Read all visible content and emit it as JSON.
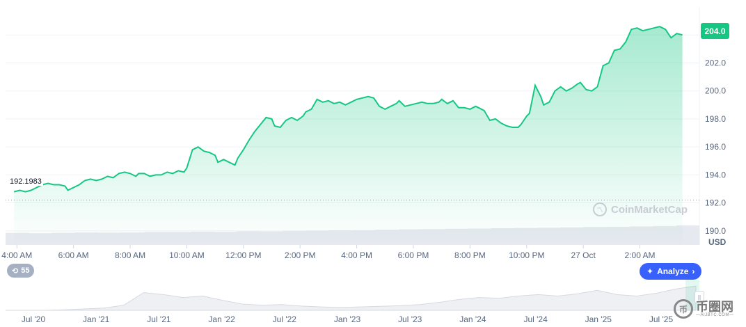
{
  "chart_data": {
    "type": "area",
    "currency": "USD",
    "last_price_label": "204.0",
    "open_price_label": "192.1983",
    "open_price": 192.1983,
    "ylim": [
      189,
      206
    ],
    "y_ticks": [
      "190.0",
      "192.0",
      "194.0",
      "196.0",
      "198.0",
      "200.0",
      "202.0",
      "204.0"
    ],
    "x_ticks": [
      {
        "label": "4:00 AM",
        "t": 3
      },
      {
        "label": "6:00 AM",
        "t": 5
      },
      {
        "label": "8:00 AM",
        "t": 7
      },
      {
        "label": "10:00 AM",
        "t": 9
      },
      {
        "label": "12:00 PM",
        "t": 11
      },
      {
        "label": "2:00 PM",
        "t": 13
      },
      {
        "label": "4:00 PM",
        "t": 15
      },
      {
        "label": "6:00 PM",
        "t": 17
      },
      {
        "label": "8:00 PM",
        "t": 19
      },
      {
        "label": "10:00 PM",
        "t": 21
      },
      {
        "label": "27 Oct",
        "t": 23
      },
      {
        "label": "2:00 AM",
        "t": 25
      }
    ],
    "xlim": [
      2.6,
      27.1
    ],
    "series": [
      {
        "line_color": "#16c784",
        "points": [
          [
            2.9,
            192.8
          ],
          [
            3.1,
            192.9
          ],
          [
            3.3,
            192.8
          ],
          [
            3.5,
            192.9
          ],
          [
            3.7,
            193.1
          ],
          [
            3.9,
            193.3
          ],
          [
            4.1,
            193.4
          ],
          [
            4.3,
            193.3
          ],
          [
            4.5,
            193.3
          ],
          [
            4.7,
            193.2
          ],
          [
            4.8,
            192.9
          ],
          [
            5.0,
            193.1
          ],
          [
            5.2,
            193.3
          ],
          [
            5.4,
            193.6
          ],
          [
            5.6,
            193.7
          ],
          [
            5.8,
            193.6
          ],
          [
            6.0,
            193.7
          ],
          [
            6.2,
            193.9
          ],
          [
            6.4,
            193.8
          ],
          [
            6.6,
            194.1
          ],
          [
            6.8,
            194.2
          ],
          [
            7.0,
            194.1
          ],
          [
            7.2,
            193.9
          ],
          [
            7.3,
            194.1
          ],
          [
            7.5,
            194.1
          ],
          [
            7.7,
            193.9
          ],
          [
            7.9,
            194.0
          ],
          [
            8.1,
            194.0
          ],
          [
            8.3,
            194.2
          ],
          [
            8.5,
            194.1
          ],
          [
            8.7,
            194.3
          ],
          [
            8.9,
            194.2
          ],
          [
            9.0,
            194.5
          ],
          [
            9.2,
            195.8
          ],
          [
            9.4,
            196.0
          ],
          [
            9.6,
            195.7
          ],
          [
            9.8,
            195.6
          ],
          [
            10.0,
            195.4
          ],
          [
            10.1,
            194.9
          ],
          [
            10.3,
            195.1
          ],
          [
            10.5,
            194.9
          ],
          [
            10.7,
            194.7
          ],
          [
            10.8,
            195.2
          ],
          [
            11.0,
            195.8
          ],
          [
            11.2,
            196.5
          ],
          [
            11.4,
            197.1
          ],
          [
            11.6,
            197.6
          ],
          [
            11.8,
            198.1
          ],
          [
            12.0,
            198.0
          ],
          [
            12.1,
            197.5
          ],
          [
            12.3,
            197.4
          ],
          [
            12.5,
            197.9
          ],
          [
            12.7,
            198.1
          ],
          [
            12.9,
            197.9
          ],
          [
            13.1,
            198.2
          ],
          [
            13.2,
            198.5
          ],
          [
            13.4,
            198.7
          ],
          [
            13.6,
            199.4
          ],
          [
            13.8,
            199.2
          ],
          [
            14.0,
            199.3
          ],
          [
            14.2,
            199.1
          ],
          [
            14.4,
            199.2
          ],
          [
            14.6,
            199.0
          ],
          [
            14.8,
            199.2
          ],
          [
            15.0,
            199.4
          ],
          [
            15.2,
            199.5
          ],
          [
            15.4,
            199.6
          ],
          [
            15.6,
            199.5
          ],
          [
            15.8,
            198.9
          ],
          [
            16.0,
            198.7
          ],
          [
            16.2,
            198.9
          ],
          [
            16.4,
            199.1
          ],
          [
            16.5,
            199.3
          ],
          [
            16.7,
            198.9
          ],
          [
            16.9,
            199.0
          ],
          [
            17.1,
            199.1
          ],
          [
            17.3,
            199.2
          ],
          [
            17.5,
            199.1
          ],
          [
            17.7,
            199.1
          ],
          [
            17.9,
            199.2
          ],
          [
            18.0,
            199.4
          ],
          [
            18.2,
            199.1
          ],
          [
            18.4,
            199.3
          ],
          [
            18.6,
            198.8
          ],
          [
            18.8,
            198.8
          ],
          [
            19.0,
            198.7
          ],
          [
            19.2,
            198.9
          ],
          [
            19.3,
            198.8
          ],
          [
            19.5,
            198.6
          ],
          [
            19.7,
            197.9
          ],
          [
            19.9,
            198.0
          ],
          [
            20.1,
            197.7
          ],
          [
            20.3,
            197.5
          ],
          [
            20.5,
            197.4
          ],
          [
            20.7,
            197.4
          ],
          [
            20.8,
            197.6
          ],
          [
            21.0,
            198.2
          ],
          [
            21.1,
            198.4
          ],
          [
            21.3,
            200.4
          ],
          [
            21.5,
            199.6
          ],
          [
            21.6,
            199.0
          ],
          [
            21.8,
            199.2
          ],
          [
            22.0,
            200.0
          ],
          [
            22.2,
            200.3
          ],
          [
            22.4,
            200.0
          ],
          [
            22.6,
            200.2
          ],
          [
            22.8,
            200.5
          ],
          [
            22.9,
            200.6
          ],
          [
            23.1,
            200.1
          ],
          [
            23.3,
            200.0
          ],
          [
            23.5,
            200.3
          ],
          [
            23.7,
            201.8
          ],
          [
            23.9,
            202.0
          ],
          [
            24.1,
            202.9
          ],
          [
            24.3,
            203.0
          ],
          [
            24.5,
            203.5
          ],
          [
            24.7,
            204.4
          ],
          [
            24.9,
            204.5
          ],
          [
            25.1,
            204.3
          ],
          [
            25.3,
            204.4
          ],
          [
            25.5,
            204.5
          ],
          [
            25.7,
            204.6
          ],
          [
            25.9,
            204.4
          ],
          [
            26.1,
            203.8
          ],
          [
            26.3,
            204.1
          ],
          [
            26.5,
            204.0
          ]
        ]
      }
    ],
    "volume_relative": [
      0.62,
      0.6,
      0.62,
      0.64,
      0.63,
      0.64,
      0.66,
      0.66,
      0.68,
      0.67,
      0.7,
      0.69,
      0.72,
      0.74,
      0.75,
      0.76,
      0.78,
      0.8,
      0.81,
      0.83,
      0.84,
      0.86,
      0.87,
      0.88,
      0.9,
      0.92,
      0.93,
      0.95,
      0.97,
      1.0
    ],
    "navigator": {
      "x_ticks": [
        "Jul '20",
        "Jan '21",
        "Jul '21",
        "Jan '22",
        "Jul '22",
        "Jan '23",
        "Jul '23",
        "Jan '24",
        "Jul '24",
        "Jan '25",
        "Jul '25"
      ],
      "relative_values": [
        0.0,
        0.0,
        0.0,
        0.02,
        0.05,
        0.08,
        0.18,
        0.62,
        0.55,
        0.45,
        0.5,
        0.35,
        0.22,
        0.18,
        0.2,
        0.15,
        0.12,
        0.1,
        0.12,
        0.14,
        0.16,
        0.2,
        0.28,
        0.38,
        0.45,
        0.42,
        0.5,
        0.55,
        0.5,
        0.58,
        0.7,
        0.55,
        0.5,
        0.6,
        0.75,
        0.85
      ]
    }
  },
  "events": {
    "count": "55"
  },
  "analyze": {
    "label": "Analyze"
  },
  "watermark": {
    "text": "CoinMarketCap"
  },
  "corner_logo": {
    "text": "币圈网",
    "sub": "—AIJBTC.COM—"
  },
  "colors": {
    "accent": "#16c784",
    "button": "#3861fb"
  },
  "icons": {
    "events": "history-clock-icon",
    "analyze": "analyze-sparkle-icon",
    "chevron": "chevron-right-icon"
  }
}
